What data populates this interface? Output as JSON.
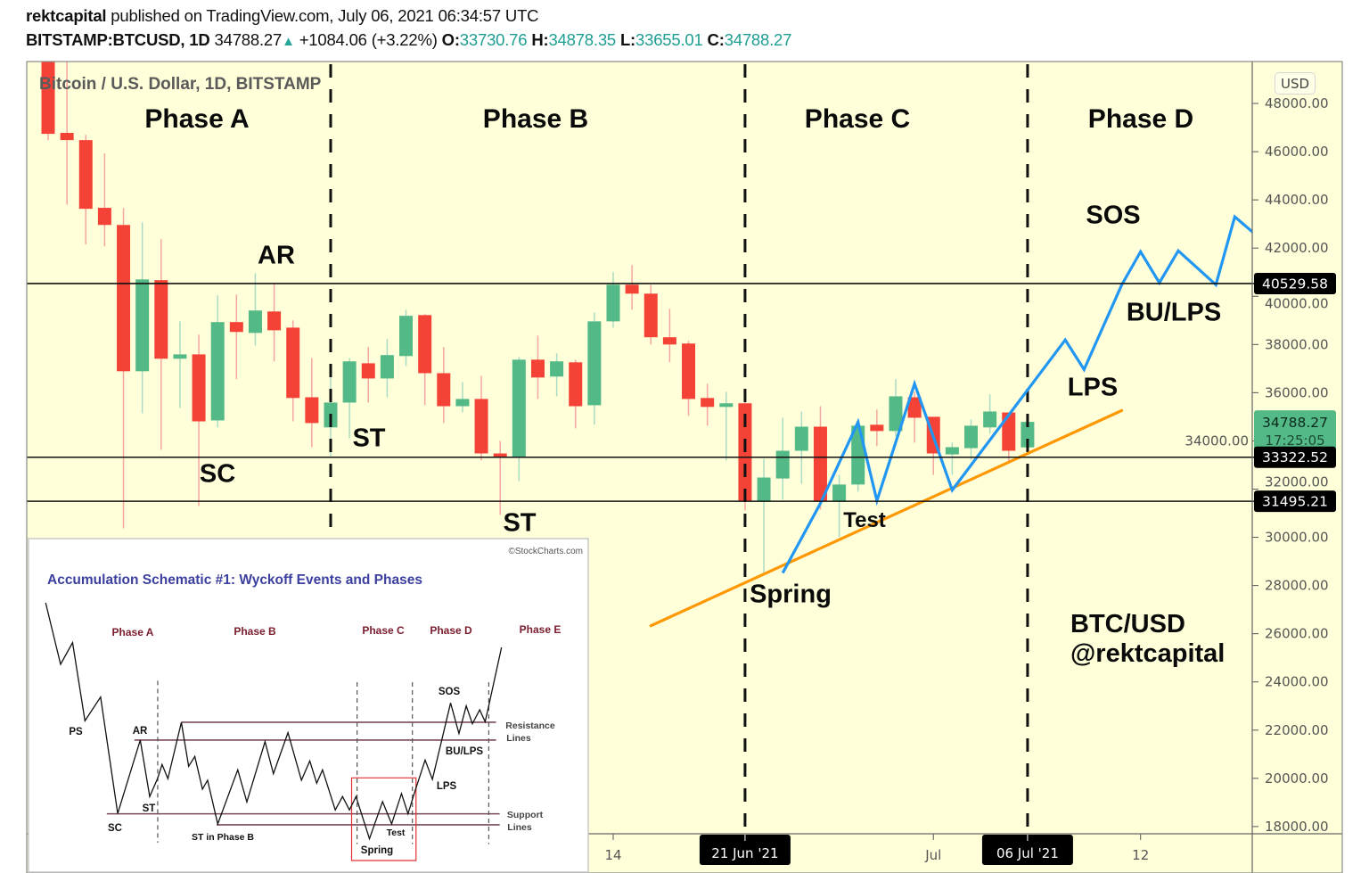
{
  "header": {
    "author": "rektcapital",
    "published": " published on TradingView.com, July 06, 2021 06:34:57 UTC",
    "symbol": "BITSTAMP:BTCUSD, 1D",
    "last": "34788.27",
    "direction_icon": "triangle-up-icon",
    "change": "+1084.06 (+3.22%)",
    "o_label": "O:",
    "o": "33730.76",
    "h_label": "H:",
    "h": "34878.35",
    "l_label": "L:",
    "l": "33655.01",
    "c_label": "C:",
    "c": "34788.27"
  },
  "chart_data": {
    "type": "candlestick",
    "title": "Bitcoin / U.S. Dollar, 1D, BITSTAMP",
    "currency_button": "USD",
    "ylim": [
      17700,
      49740
    ],
    "y_ticks": [
      18000,
      20000,
      22000,
      24000,
      26000,
      28000,
      30000,
      32000,
      34000,
      36000,
      38000,
      40000,
      42000,
      44000,
      46000,
      48000
    ],
    "x_ticks": [
      {
        "date": "2021-06-14",
        "label": "14"
      },
      {
        "date": "2021-07-01",
        "label": "Jul"
      },
      {
        "date": "2021-07-12",
        "label": "12"
      }
    ],
    "x_highlight_labels": [
      {
        "date": "2021-06-21",
        "label": "21 Jun '21"
      },
      {
        "date": "2021-07-06",
        "label": "06 Jul '21"
      }
    ],
    "colors": {
      "up": "#53b987",
      "down": "#f44336",
      "up_wick": "#a9dcc4",
      "down_wick": "#f6a6a2",
      "background": "#ffffda",
      "zigzag": "#2196f3",
      "trendline": "#ff9800"
    },
    "candles": [
      [
        "2021-05-15",
        49900,
        50600,
        46480,
        46740
      ],
      [
        "2021-05-16",
        46780,
        49800,
        43800,
        46480
      ],
      [
        "2021-05-17",
        46480,
        46700,
        42150,
        43630
      ],
      [
        "2021-05-18",
        43670,
        45930,
        42070,
        42960
      ],
      [
        "2021-05-19",
        42960,
        43670,
        30370,
        36890
      ],
      [
        "2021-05-20",
        36890,
        43070,
        35150,
        40700
      ],
      [
        "2021-05-21",
        40670,
        42370,
        33630,
        37410
      ],
      [
        "2021-05-22",
        37410,
        38960,
        35370,
        37590
      ],
      [
        "2021-05-23",
        37590,
        38410,
        31300,
        34810
      ],
      [
        "2021-05-24",
        34850,
        40040,
        34560,
        38930
      ],
      [
        "2021-05-25",
        38930,
        40070,
        36560,
        38520
      ],
      [
        "2021-05-26",
        38480,
        40960,
        37960,
        39410
      ],
      [
        "2021-05-27",
        39370,
        40520,
        37300,
        38590
      ],
      [
        "2021-05-28",
        38700,
        39000,
        34810,
        35780
      ],
      [
        "2021-05-29",
        35810,
        37440,
        33740,
        34740
      ],
      [
        "2021-05-30",
        34560,
        36670,
        33370,
        35590
      ],
      [
        "2021-05-31",
        35590,
        37440,
        34110,
        37300
      ],
      [
        "2021-06-01",
        37220,
        37890,
        35590,
        36590
      ],
      [
        "2021-06-02",
        36590,
        38220,
        35810,
        37560
      ],
      [
        "2021-06-03",
        37520,
        39440,
        37110,
        39190
      ],
      [
        "2021-06-04",
        39220,
        39260,
        35480,
        36810
      ],
      [
        "2021-06-05",
        36810,
        37890,
        34740,
        35440
      ],
      [
        "2021-06-06",
        35440,
        36440,
        35180,
        35740
      ],
      [
        "2021-06-07",
        35740,
        36700,
        33190,
        33480
      ],
      [
        "2021-06-08",
        33480,
        34000,
        30930,
        33300
      ],
      [
        "2021-06-09",
        33300,
        37480,
        32330,
        37370
      ],
      [
        "2021-06-10",
        37370,
        38370,
        35740,
        36630
      ],
      [
        "2021-06-11",
        36670,
        37630,
        35850,
        37300
      ],
      [
        "2021-06-12",
        37260,
        37370,
        34520,
        35440
      ],
      [
        "2021-06-13",
        35480,
        39330,
        34670,
        38960
      ],
      [
        "2021-06-14",
        38960,
        41000,
        38700,
        40480
      ],
      [
        "2021-06-15",
        40480,
        41300,
        39440,
        40110
      ],
      [
        "2021-06-16",
        40110,
        40480,
        38000,
        38300
      ],
      [
        "2021-06-17",
        38300,
        39480,
        37260,
        38000
      ],
      [
        "2021-06-18",
        38040,
        38150,
        35040,
        35740
      ],
      [
        "2021-06-19",
        35780,
        36370,
        34630,
        35410
      ],
      [
        "2021-06-20",
        35410,
        36040,
        33190,
        35560
      ],
      [
        "2021-06-21",
        35560,
        35740,
        31110,
        31520
      ],
      [
        "2021-06-22",
        31480,
        33260,
        28440,
        32480
      ],
      [
        "2021-06-23",
        32440,
        34960,
        31560,
        33590
      ],
      [
        "2021-06-24",
        33590,
        35220,
        32220,
        34590
      ],
      [
        "2021-06-25",
        34590,
        35440,
        31150,
        31480
      ],
      [
        "2021-06-26",
        31480,
        32590,
        30000,
        32190
      ],
      [
        "2021-06-27",
        32190,
        34700,
        31890,
        34630
      ],
      [
        "2021-06-28",
        34670,
        35300,
        33780,
        34410
      ],
      [
        "2021-06-29",
        34410,
        36560,
        34190,
        35850
      ],
      [
        "2021-06-30",
        35810,
        36040,
        33930,
        34960
      ],
      [
        "2021-07-01",
        35000,
        35000,
        32590,
        33480
      ],
      [
        "2021-07-02",
        33440,
        33930,
        32590,
        33740
      ],
      [
        "2021-07-03",
        33700,
        34890,
        33220,
        34630
      ],
      [
        "2021-07-04",
        34560,
        35930,
        34300,
        35220
      ],
      [
        "2021-07-05",
        35180,
        35180,
        33070,
        33590
      ],
      [
        "2021-07-06",
        33730.76,
        34878.35,
        33655.01,
        34788.27
      ]
    ],
    "horizontal_lines": [
      {
        "price": 40529.58,
        "label": "40529.58"
      },
      {
        "price": 33322.52,
        "label": "33322.52"
      },
      {
        "price": 31495.21,
        "label": "31495.21"
      }
    ],
    "last_price_tag": {
      "price": 34788.27,
      "label": "34788.27",
      "countdown": "17:25:05"
    },
    "phase_dividers": [
      "2021-05-30",
      "2021-06-21",
      "2021-07-06"
    ],
    "zigzag_projection": [
      [
        "2021-06-23",
        28520
      ],
      [
        "2021-06-25",
        31410
      ],
      [
        "2021-06-27",
        34780
      ],
      [
        "2021-06-28",
        31520
      ],
      [
        "2021-06-30",
        36370
      ],
      [
        "2021-07-02",
        31960
      ],
      [
        "2021-07-08",
        38190
      ],
      [
        "2021-07-09",
        36960
      ],
      [
        "2021-07-11",
        40480
      ],
      [
        "2021-07-12",
        41850
      ],
      [
        "2021-07-13",
        40560
      ],
      [
        "2021-07-14",
        41890
      ],
      [
        "2021-07-16",
        40480
      ],
      [
        "2021-07-17",
        43300
      ],
      [
        "2021-07-18",
        42630
      ]
    ],
    "trendline": [
      [
        "2021-06-16",
        26330
      ],
      [
        "2021-07-11",
        35260
      ]
    ],
    "phases": [
      "Phase A",
      "Phase B",
      "Phase C",
      "Phase D"
    ],
    "events": {
      "ar": "AR",
      "st1": "ST",
      "sc": "SC",
      "st2": "ST",
      "spring": "Spring",
      "test": "Test",
      "sos": "SOS",
      "lps": "LPS",
      "bu_lps": "BU/LPS"
    },
    "watermark": {
      "line1": "BTC/USD",
      "line2": "@rektcapital"
    }
  },
  "inset": {
    "credit": "©StockCharts.com",
    "title": "Accumulation Schematic #1: Wyckoff Events and Phases",
    "phases": [
      "Phase A",
      "Phase B",
      "Phase C",
      "Phase D",
      "Phase E"
    ],
    "events": {
      "ps": "PS",
      "ar": "AR",
      "st": "ST",
      "sc": "SC",
      "st_b": "ST in Phase B",
      "spring": "Spring",
      "test": "Test",
      "lps": "LPS",
      "bu_lps": "BU/LPS",
      "sos": "SOS"
    },
    "resistance": [
      "Resistance",
      "Lines"
    ],
    "support": [
      "Support",
      "Lines"
    ]
  }
}
